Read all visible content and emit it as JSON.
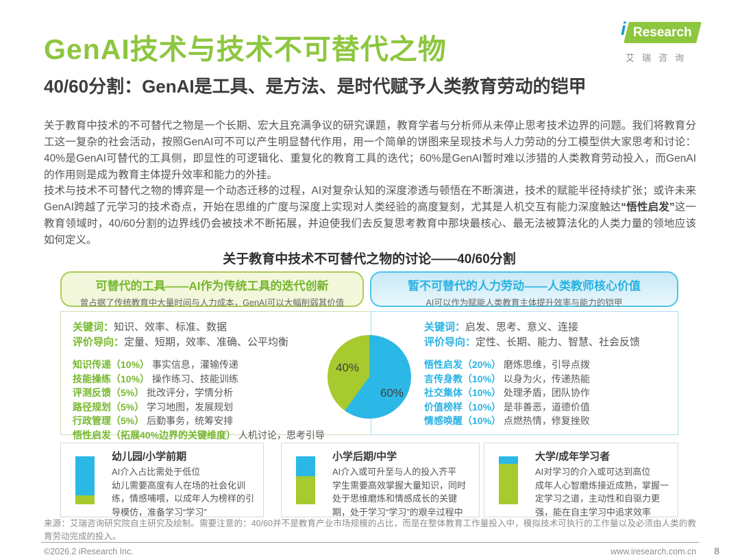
{
  "header": {
    "title": "GenAI技术与技术不可替代之物",
    "subtitle": "40/60分割：GenAI是工具、是方法、是时代赋予人类教育劳动的铠甲",
    "logo": {
      "i": "i",
      "brand": "Research",
      "caption": "艾瑞咨询"
    }
  },
  "intro": {
    "paragraph1": "关于教育中技术的不可替代之物是一个长期、宏大且充满争议的研究课题，教育学者与分析师从未停止思考技术边界的问题。我们将教育分工这一复杂的社会活动，按照GenAI可不可以产生明显替代作用，用一个简单的饼图来呈现技术与人力劳动的分工模型供大家思考和讨论：40%是GenAI可替代的工具侧，即显性的可逻辑化、重复化的教育工具的迭代；60%是GenAI暂时难以涉猎的人类教育劳动投入，而GenAI的作用则是成为教育主体提升效率和能力的外挂。",
    "paragraph2_pre": "技术与技术不可替代之物的博弈是一个动态迁移的过程，AI对复杂认知的深度渗透与顿悟在不断演进，技术的赋能半径持续扩张；或许未来GenAI跨越了元学习的技术奇点，开始在思维的广度与深度上实现对人类经验的高度复刻，尤其是人机交互有能力深度触达",
    "paragraph2_bold": "“悟性启发”",
    "paragraph2_post": "这一教育领域时，40/60分割的边界线仍会被技术不断拓展，并迫使我们去反复思考教育中那块最核心、最无法被算法化的人类力量的领地应该如何定义。"
  },
  "figure": {
    "title": "关于教育中技术不可替代之物的讨论——40/60分割",
    "left": {
      "header_title": "可替代的工具——AI作为传统工具的迭代创新",
      "header_subtitle": "曾占据了传统教育中大量时间与人力成本，GenAI可以大幅削弱其价值",
      "keywords_label": "关键词：",
      "keywords": "知识、效率、标准、数据",
      "orientation_label": "评价导向：",
      "orientation": "定量、短期，效率、准确、公平均衡",
      "items": [
        {
          "term": "知识传递",
          "pct": "（10%）",
          "desc": "事实信息，灌输传递"
        },
        {
          "term": "技能操练",
          "pct": "（10%）",
          "desc": "操作练习、技能训练"
        },
        {
          "term": "评测反馈",
          "pct": "（5%）",
          "desc": "批改评分，学情分析"
        },
        {
          "term": "路径规划",
          "pct": "（5%）",
          "desc": "学习地图，发展规划"
        },
        {
          "term": "行政管理",
          "pct": "（5%）",
          "desc": "后勤事务，统筹安排"
        },
        {
          "term": "悟性启发",
          "pct": "（拓展40%边界的关键维度）",
          "desc": "人机讨论，思考引导"
        }
      ]
    },
    "right": {
      "header_title": "暂不可替代的人力劳动——人类教师核心价值",
      "header_subtitle": "AI可以作为赋能人类教育主体提升效率与能力的铠甲",
      "keywords_label": "关键词：",
      "keywords": "启发、思考、意义、连接",
      "orientation_label": "评价导向：",
      "orientation": "定性、长期、能力、智慧、社会反馈",
      "items": [
        {
          "term": "悟性启发",
          "pct": "（20%）",
          "desc": "磨炼思维，引导点拨"
        },
        {
          "term": "言传身教",
          "pct": "（10%）",
          "desc": "以身为火，传递热能"
        },
        {
          "term": "社交集体",
          "pct": "（10%）",
          "desc": "处理矛盾，团队协作"
        },
        {
          "term": "价值榜样",
          "pct": "（10%）",
          "desc": "是非善恶，道德价值"
        },
        {
          "term": "情感唤醒",
          "pct": "（10%）",
          "desc": "点燃热情，修复挫败"
        }
      ]
    },
    "pie_labels": {
      "green": "40%",
      "cyan": "60%"
    }
  },
  "stages": [
    {
      "title": "幼儿园/小学前期",
      "headline": "AI介入占比需处于低位",
      "body": "幼儿需要高度有人在场的社会化训练，情感哺喂，以成年人为榜样的引导模仿，准备学习“学习”"
    },
    {
      "title": "小学后期/中学",
      "headline": "AI介入或可升至与人的投入齐平",
      "body": "学生需要高效掌握大量知识，同时处于思维磨炼和情感成长的关键期，处于学习“学习”的艰辛过程中"
    },
    {
      "title": "大学/成年学习者",
      "headline": "AI对学习的介入或可达到高位",
      "body": "成年人心智磨炼接近成熟，掌握一定学习之道，主动性和自驱力更强，能在自主学习中追求效率"
    }
  ],
  "source_note": "来源：艾瑞咨询研究院自主研究及绘制。需要注意的：40/60并不是教育产业市场规模的占比，而是在整体教育工作量投入中，模拟技术可执行的工作量以及必须由人类的教育劳动完成的投入。",
  "footer": {
    "copyright": "©2026.2 iResearch Inc.",
    "website": "www.iresearch.com.cn",
    "page_number": "8"
  },
  "colors": {
    "accent_green": "#76b82d",
    "accent_cyan": "#2ab3e4",
    "title_green": "#8dc63f"
  },
  "chart_data": [
    {
      "type": "pie",
      "title": "关于教育中技术不可替代之物的讨论——40/60分割",
      "labels": [
        "可替代的工具（GenAI可替代侧）",
        "暂不可替代的人力劳动（人类教师）"
      ],
      "values": [
        40,
        60
      ],
      "display_labels": [
        "40%",
        "60%"
      ],
      "colors": [
        "#a7ca2e",
        "#2bb8e7"
      ],
      "layout": "cyan 60% sweeps clockwise from 12 o'clock, green 40% fills the remainder; labels printed inside slices"
    },
    {
      "type": "bar",
      "subtype": "stacked-vertical-mini",
      "categories": [
        "幼儿园/小学前期",
        "小学后期/中学",
        "大学/成年学习者"
      ],
      "series": [
        {
          "name": "人类投入占比（蓝，上段）",
          "values": [
            82,
            42,
            15
          ],
          "color": "#2bb8e7"
        },
        {
          "name": "AI介入占比（绿，下段）",
          "values": [
            18,
            58,
            85
          ],
          "color": "#a7ca2e"
        }
      ],
      "unit": "%",
      "values_estimated": true
    }
  ]
}
